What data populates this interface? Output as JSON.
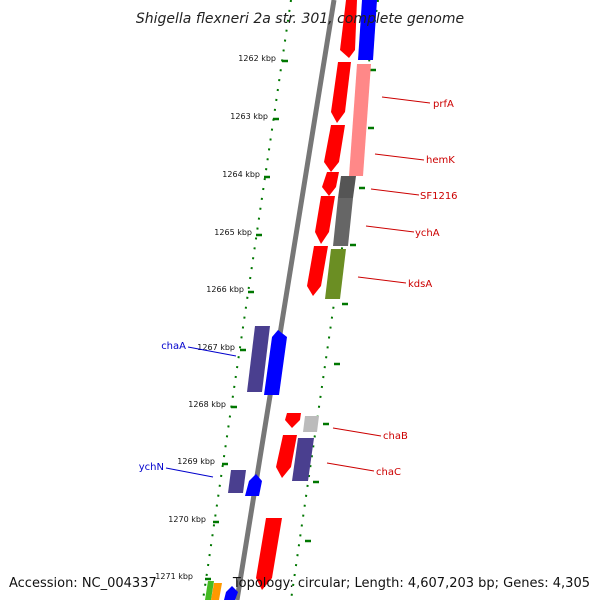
{
  "title": "Shigella flexneri 2a str. 301, complete genome",
  "accession": "Accession: NC_004337",
  "summary": "Topology: circular; Length: 4,607,203 bp; Genes: 4,305",
  "kbp_labels": [
    "1262 kbp",
    "1263 kbp",
    "1264 kbp",
    "1265 kbp",
    "1266 kbp",
    "1267 kbp",
    "1268 kbp",
    "1269 kbp",
    "1270 kbp",
    "1271 kbp"
  ],
  "gene_labels": {
    "prfA": "prfA",
    "hemK": "hemK",
    "sf1216": "SF1216",
    "ychA": "ychA",
    "kdsA": "kdsA",
    "chaB": "chaB",
    "chaC": "chaC",
    "chaA": "chaA",
    "ychN": "ychN"
  },
  "colors": {
    "tick_green": "#007700",
    "red": "#ff0000",
    "pink": "#ff8888",
    "blue": "#0000ff",
    "navy": "#4a3f8f",
    "olive": "#6b8e23",
    "gray": "#666666",
    "light_gray": "#bbbbbb",
    "label_red": "#cc0000",
    "label_blue": "#0000cc"
  }
}
